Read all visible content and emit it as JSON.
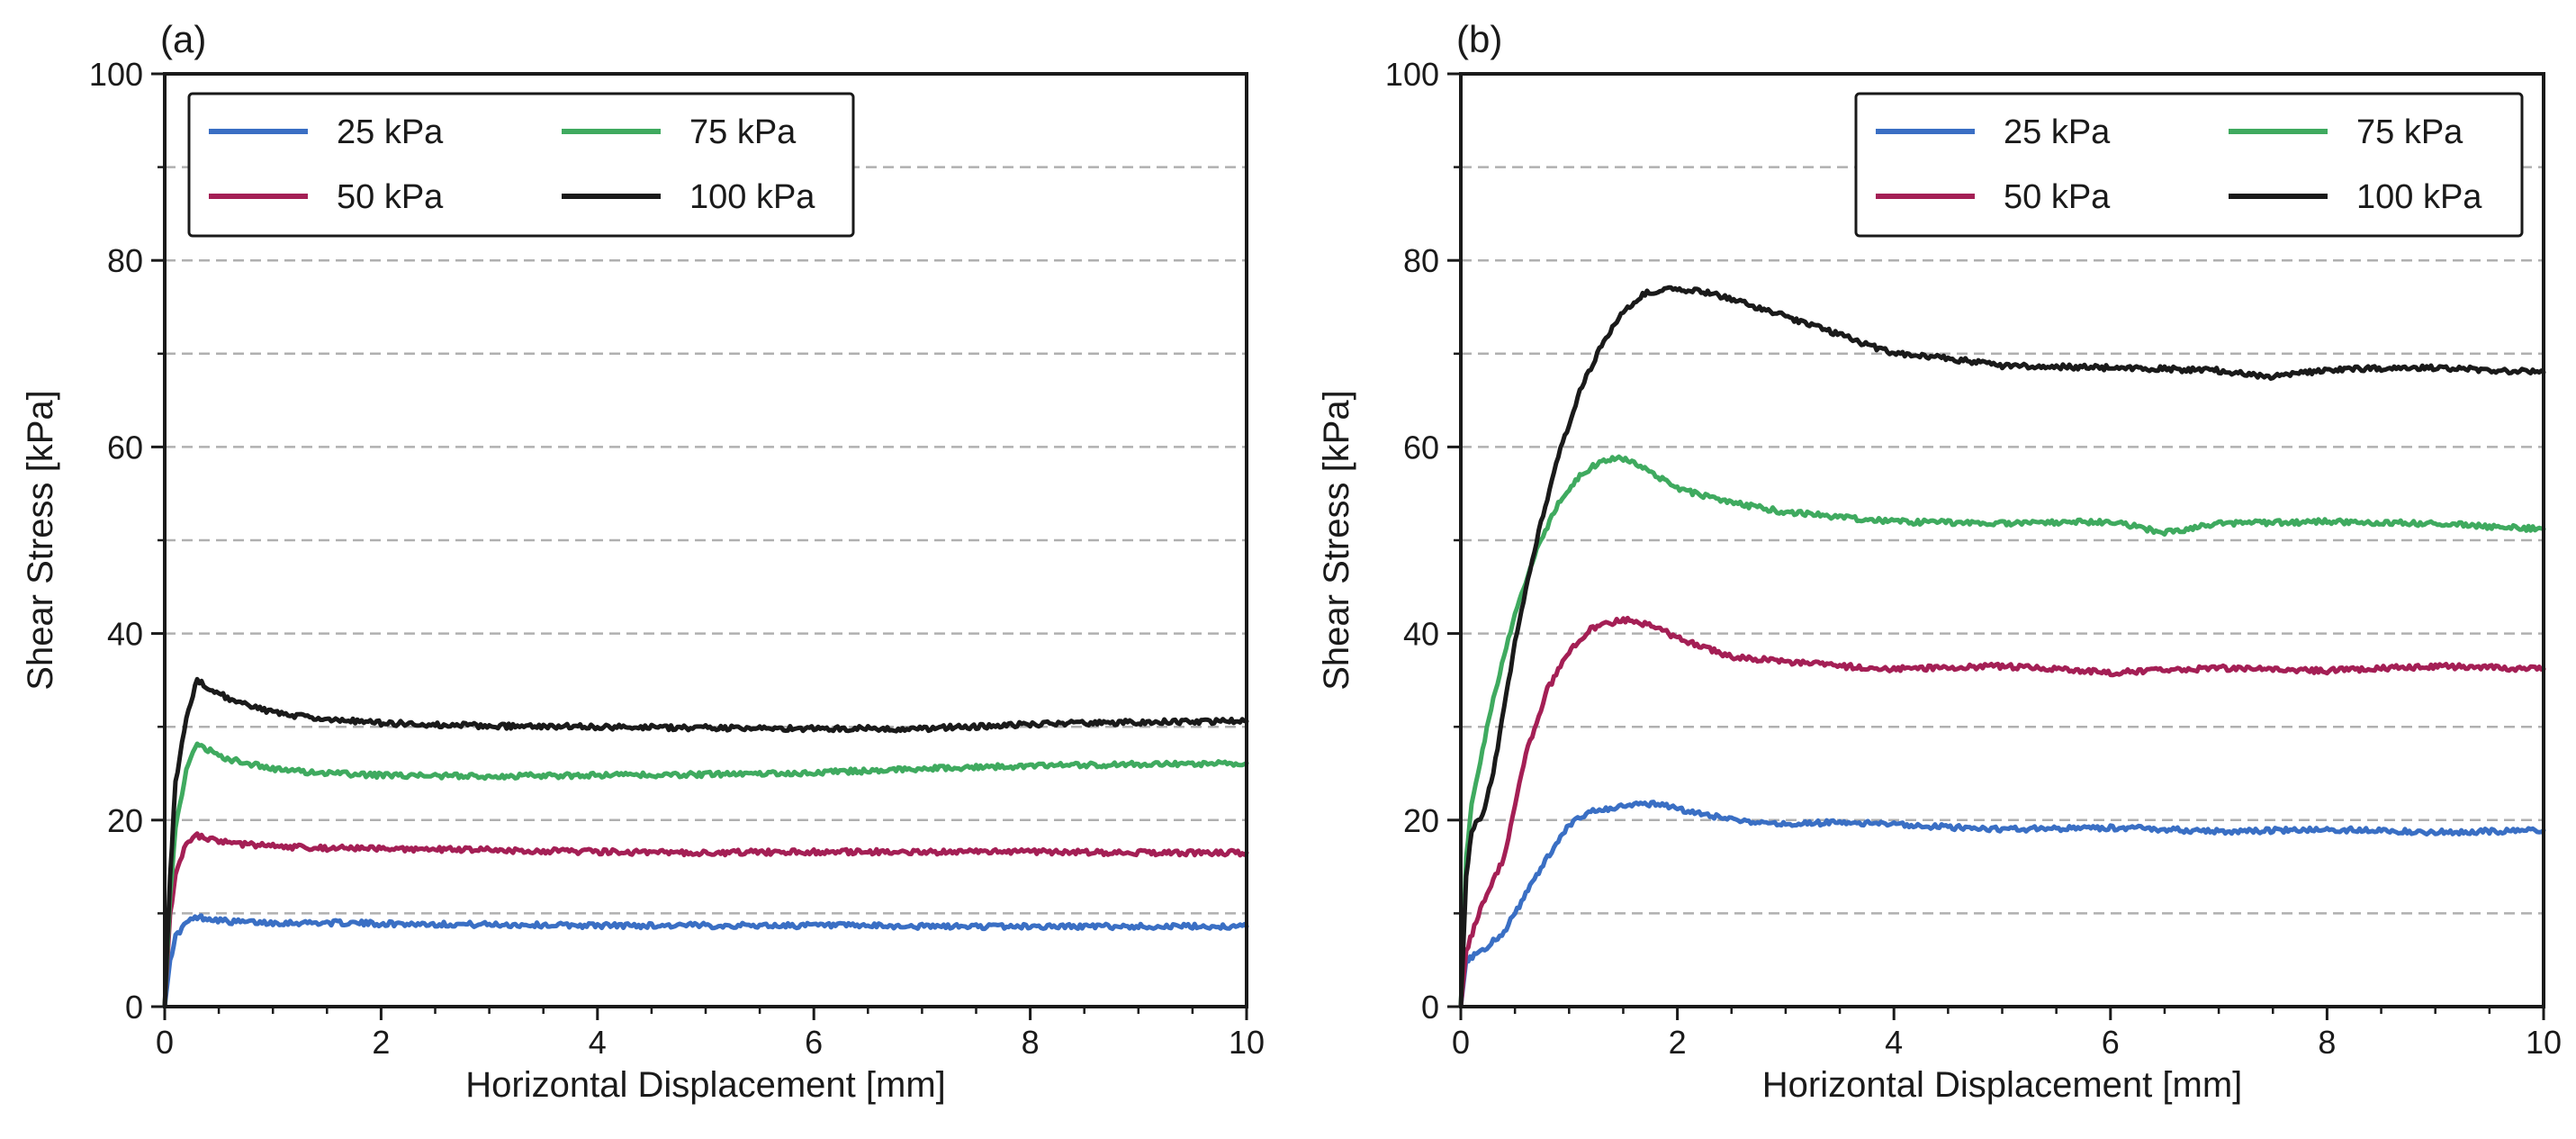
{
  "figure": {
    "colors": {
      "25 kPa": "#3a6fc4",
      "50 kPa": "#a41f55",
      "75 kPa": "#3faa5f",
      "100 kPa": "#1a1a1a",
      "grid": "#b0b0b0",
      "axis": "#1a1a1a"
    }
  },
  "chart_data": [
    {
      "panel_label": "(a)",
      "type": "line",
      "xlabel": "Horizontal Displacement [mm]",
      "ylabel": "Shear Stress [kPa]",
      "xlim": [
        0,
        10
      ],
      "ylim": [
        0,
        100
      ],
      "xticks": [
        0,
        2,
        4,
        6,
        8,
        10
      ],
      "yticks": [
        0,
        20,
        40,
        60,
        80,
        100
      ],
      "ygrid": [
        10,
        20,
        30,
        40,
        50,
        60,
        70,
        80,
        90
      ],
      "grid_style": "dashed horizontal",
      "legend": {
        "position": "top-left",
        "columns": 2
      },
      "series": [
        {
          "name": "25 kPa",
          "x": [
            0,
            0.05,
            0.1,
            0.2,
            0.3,
            0.45,
            0.6,
            1,
            1.5,
            2,
            3,
            4,
            5,
            6,
            7,
            8,
            9,
            10
          ],
          "y": [
            0,
            5,
            7.5,
            9,
            9.6,
            9.4,
            9.1,
            9,
            9,
            8.9,
            8.8,
            8.7,
            8.7,
            8.7,
            8.6,
            8.6,
            8.6,
            8.6
          ]
        },
        {
          "name": "50 kPa",
          "x": [
            0,
            0.05,
            0.1,
            0.2,
            0.3,
            0.4,
            0.6,
            1,
            1.5,
            2,
            3,
            4,
            5,
            6,
            7,
            8,
            9,
            10
          ],
          "y": [
            0,
            10,
            14,
            17.5,
            18.3,
            18,
            17.5,
            17.2,
            17,
            16.9,
            16.8,
            16.6,
            16.5,
            16.6,
            16.6,
            16.6,
            16.5,
            16.5
          ]
        },
        {
          "name": "75 kPa",
          "x": [
            0,
            0.05,
            0.1,
            0.2,
            0.3,
            0.4,
            0.6,
            1,
            1.5,
            2,
            3,
            4,
            5,
            6,
            7,
            8,
            9,
            10
          ],
          "y": [
            0,
            12,
            19,
            25.5,
            28,
            27.5,
            26.5,
            25.5,
            25,
            24.8,
            24.7,
            24.8,
            24.9,
            25.1,
            25.5,
            25.8,
            26,
            26.1
          ]
        },
        {
          "name": "100 kPa",
          "x": [
            0,
            0.05,
            0.1,
            0.2,
            0.3,
            0.4,
            0.6,
            1,
            1.5,
            2,
            3,
            4,
            5,
            6,
            7,
            8,
            9,
            10
          ],
          "y": [
            0,
            14,
            24,
            31,
            35,
            34.2,
            33,
            31.5,
            30.8,
            30.4,
            30.1,
            30,
            29.9,
            29.8,
            29.8,
            30.3,
            30.5,
            30.6
          ]
        }
      ]
    },
    {
      "panel_label": "(b)",
      "type": "line",
      "xlabel": "Horizontal Displacement [mm]",
      "ylabel": "Shear Stress [kPa]",
      "xlim": [
        0,
        10
      ],
      "ylim": [
        0,
        100
      ],
      "xticks": [
        0,
        2,
        4,
        6,
        8,
        10
      ],
      "yticks": [
        0,
        20,
        40,
        60,
        80,
        100
      ],
      "ygrid": [
        10,
        20,
        30,
        40,
        50,
        60,
        70,
        80,
        90
      ],
      "grid_style": "dashed horizontal",
      "legend": {
        "position": "top-right",
        "columns": 2
      },
      "series": [
        {
          "name": "25 kPa",
          "x": [
            0,
            0.05,
            0.2,
            0.4,
            0.6,
            0.8,
            1,
            1.2,
            1.5,
            1.8,
            2,
            2.5,
            3,
            3.5,
            4,
            5,
            6,
            7,
            8,
            9,
            10
          ],
          "y": [
            0,
            5,
            6,
            8,
            12,
            16,
            19.5,
            21,
            21.5,
            21.8,
            21.2,
            20,
            19.5,
            19.8,
            19.5,
            19,
            19.2,
            18.8,
            19,
            18.7,
            18.9
          ]
        },
        {
          "name": "50 kPa",
          "x": [
            0,
            0.05,
            0.2,
            0.4,
            0.6,
            0.8,
            1,
            1.2,
            1.5,
            1.8,
            2,
            2.5,
            3,
            3.5,
            4,
            5,
            6,
            7,
            8,
            9,
            10
          ],
          "y": [
            0,
            6,
            11,
            16,
            27,
            34,
            38,
            40.5,
            41.5,
            40.8,
            39.5,
            37.5,
            37,
            36.5,
            36.2,
            36.5,
            35.8,
            36.3,
            36,
            36.5,
            36.2
          ]
        },
        {
          "name": "75 kPa",
          "x": [
            0,
            0.05,
            0.1,
            0.3,
            0.5,
            0.7,
            0.9,
            1.1,
            1.3,
            1.5,
            1.8,
            2,
            2.5,
            3,
            3.5,
            4,
            5,
            6,
            6.5,
            7,
            8,
            9,
            10
          ],
          "y": [
            0,
            16,
            22,
            33,
            42,
            49,
            54,
            57,
            58.5,
            58.8,
            57,
            55.5,
            54,
            53,
            52.5,
            52,
            51.8,
            52,
            50.8,
            51.8,
            52,
            51.8,
            51.2
          ]
        },
        {
          "name": "100 kPa",
          "x": [
            0,
            0.05,
            0.1,
            0.2,
            0.3,
            0.5,
            0.7,
            0.9,
            1.1,
            1.3,
            1.5,
            1.7,
            2,
            2.3,
            2.6,
            3,
            3.5,
            4,
            4.5,
            5,
            6,
            7,
            7.5,
            8,
            9,
            10
          ],
          "y": [
            0,
            14,
            19,
            20.5,
            25,
            39,
            50,
            59,
            66,
            71,
            74.5,
            76.5,
            77,
            76.5,
            75.5,
            74,
            72,
            70,
            69.5,
            68.7,
            68.5,
            68.2,
            67.5,
            68.3,
            68.5,
            68
          ]
        }
      ]
    }
  ]
}
